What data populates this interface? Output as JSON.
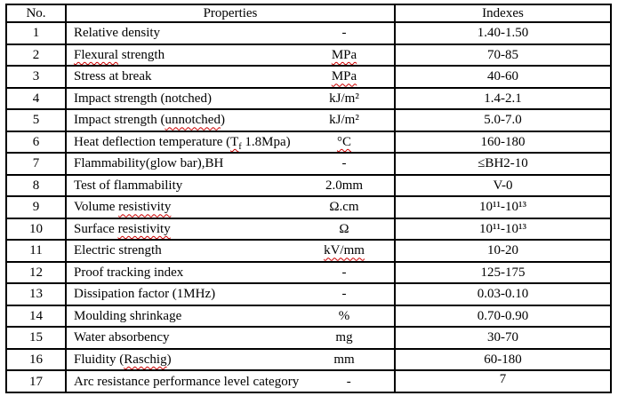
{
  "table": {
    "headers": {
      "no": "No.",
      "properties": "Properties",
      "indexes": "Indexes"
    },
    "rows": [
      {
        "no": "1",
        "prop": "Relative density",
        "unit": "-",
        "index": "1.40-1.50"
      },
      {
        "no": "2",
        "prop_mis": "Flexural",
        "prop_post": " strength",
        "unit": "MPa",
        "index": "70-85"
      },
      {
        "no": "3",
        "prop": "Stress at break",
        "unit": "MPa",
        "index": "40-60"
      },
      {
        "no": "4",
        "prop": "Impact strength (notched)",
        "unit": "kJ/m²",
        "index": "1.4-2.1"
      },
      {
        "no": "5",
        "prop_pre": "Impact strength (",
        "prop_mis": "unnotched",
        "prop_post": ")",
        "unit": "kJ/m²",
        "index": "5.0-7.0"
      },
      {
        "no": "6",
        "prop_pre": "Heat deflection temperature (",
        "prop_t": "T",
        "prop_sub": "f",
        "prop_post": " 1.8Mpa)",
        "unit": "°C",
        "index": "160-180"
      },
      {
        "no": "7",
        "prop": "Flammability(glow bar),BH",
        "unit": "-",
        "index": "≤BH2-10"
      },
      {
        "no": "8",
        "prop": "Test of flammability",
        "unit": "2.0mm",
        "index": "V-0"
      },
      {
        "no": "9",
        "prop_pre": "Volume ",
        "prop_mis": "resistivity",
        "unit": "Ω.cm",
        "index": "10¹¹-10¹³"
      },
      {
        "no": "10",
        "prop_pre": "Surface ",
        "prop_mis": "resistivity",
        "unit": "Ω",
        "index": "10¹¹-10¹³"
      },
      {
        "no": "11",
        "prop": "Electric strength",
        "unit": "kV/mm",
        "index": "10-20"
      },
      {
        "no": "12",
        "prop": "Proof tracking index",
        "unit": "-",
        "index": "125-175"
      },
      {
        "no": "13",
        "prop": "Dissipation factor (1MHz)",
        "unit": "-",
        "index": "0.03-0.10"
      },
      {
        "no": "14",
        "prop": "Moulding shrinkage",
        "unit": "%",
        "index": "0.70-0.90"
      },
      {
        "no": "15",
        "prop": "Water absorbency",
        "unit": "mg",
        "index": "30-70"
      },
      {
        "no": "16",
        "prop_pre": "Fluidity (",
        "prop_mis": "Raschig",
        "prop_post": ")",
        "unit": "mm",
        "index": "60-180"
      },
      {
        "no": "17",
        "prop": "Arc resistance performance level category",
        "unit": "-",
        "index": "7"
      }
    ]
  }
}
